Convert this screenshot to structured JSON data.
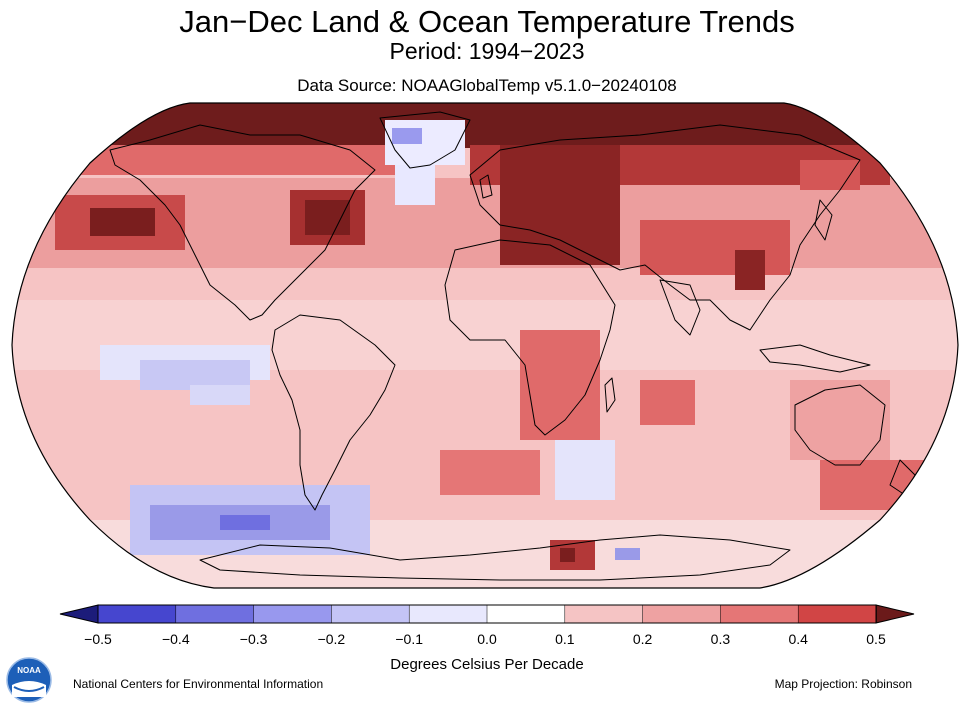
{
  "header": {
    "title": "Jan−Dec Land & Ocean Temperature Trends",
    "period": "Period: 1994−2023",
    "source": "Data Source: NOAAGlobalTemp v5.1.0−20240108"
  },
  "map": {
    "projection_label": "Map Projection: Robinson",
    "ocean_base_color": "#f6c4c4",
    "land_outline_color": "#000000",
    "regions": [
      {
        "name": "arctic-band",
        "trend": 0.5,
        "color": "#6e1c1c"
      },
      {
        "name": "greenland-interior",
        "trend": -0.1,
        "color": "#ecebff"
      },
      {
        "name": "north-pacific-hotspot",
        "trend": 0.5,
        "color": "#7a1e1e"
      },
      {
        "name": "northwest-atlantic-hotspot",
        "trend": 0.5,
        "color": "#7a1e1e"
      },
      {
        "name": "north-atlantic-cold-patch",
        "trend": -0.1,
        "color": "#e8e8ff"
      },
      {
        "name": "europe-russia",
        "trend": 0.5,
        "color": "#8a2424"
      },
      {
        "name": "east-asia",
        "trend": 0.4,
        "color": "#c84a4a"
      },
      {
        "name": "eastern-pacific-cold-tongue",
        "trend": -0.2,
        "color": "#c8c8f4"
      },
      {
        "name": "southern-pacific-cold-patch",
        "trend": -0.3,
        "color": "#9a9ae8"
      },
      {
        "name": "south-atlantic-cold-patch",
        "trend": -0.1,
        "color": "#e4e4fb"
      },
      {
        "name": "antarctica",
        "trend": 0.1,
        "color": "#f8dcdc"
      }
    ]
  },
  "colorbar": {
    "title": "Degrees Celsius Per Decade",
    "ticks": [
      "−0.5",
      "−0.4",
      "−0.3",
      "−0.2",
      "−0.1",
      "0.0",
      "0.1",
      "0.2",
      "0.3",
      "0.4",
      "0.5"
    ],
    "colors": [
      "#4646cf",
      "#6f6fe0",
      "#9898ee",
      "#c4c4f6",
      "#e8e8fd",
      "#ffffff",
      "#fbe3e3",
      "#f5c4c4",
      "#eea2a2",
      "#e57676",
      "#d14545"
    ],
    "under_color": "#1c1c7a",
    "over_color": "#6b1a1a"
  },
  "footer": {
    "left": "National Centers for Environmental Information",
    "logo_text": "NOAA"
  }
}
